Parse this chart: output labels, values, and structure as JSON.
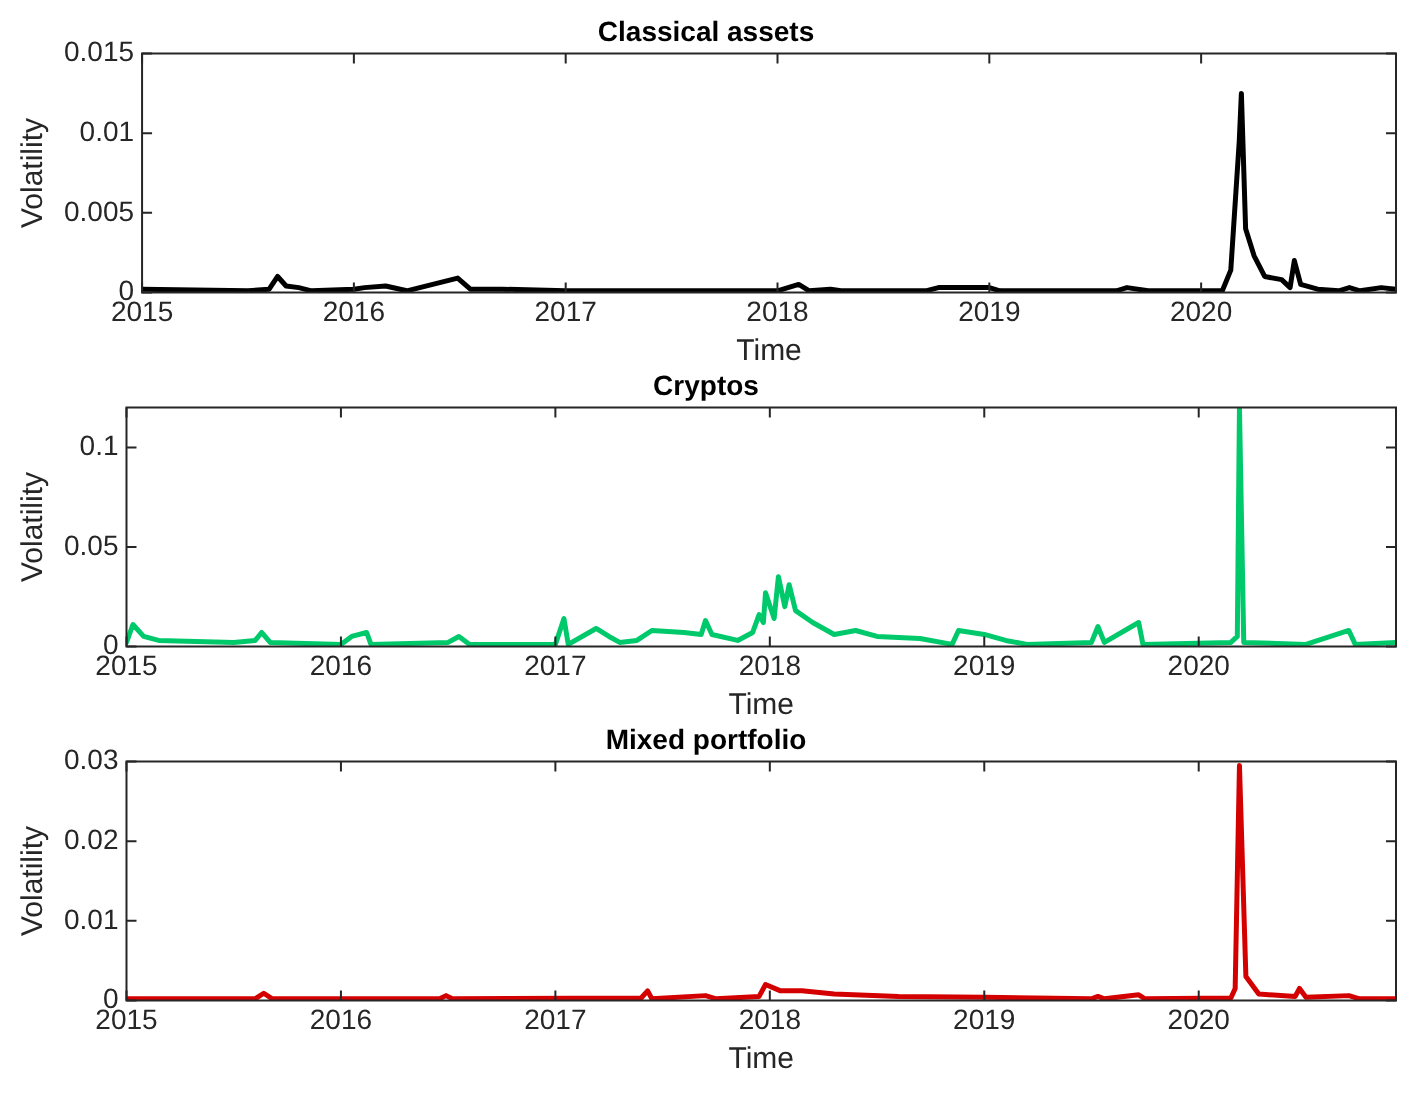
{
  "chart_data": [
    {
      "type": "line",
      "title": "Classical assets",
      "xlabel": "Time",
      "ylabel": "Volatility",
      "xlim": [
        2015,
        2020.92
      ],
      "xticks": [
        2015,
        2016,
        2017,
        2018,
        2019,
        2020
      ],
      "ylim": [
        0,
        0.015
      ],
      "yticks": [
        0,
        0.005,
        0.01,
        0.015
      ],
      "grid": false,
      "legend": false,
      "line_style": "solid",
      "marker": "none",
      "x": [
        2015.0,
        2015.5,
        2015.6,
        2015.64,
        2015.68,
        2015.74,
        2015.8,
        2016.0,
        2016.05,
        2016.15,
        2016.25,
        2016.49,
        2016.55,
        2016.7,
        2017.0,
        2018.0,
        2018.1,
        2018.15,
        2018.25,
        2018.3,
        2018.7,
        2018.76,
        2019.0,
        2019.05,
        2019.6,
        2019.65,
        2019.75,
        2020.1,
        2020.14,
        2020.18,
        2020.19,
        2020.21,
        2020.25,
        2020.3,
        2020.38,
        2020.42,
        2020.44,
        2020.47,
        2020.55,
        2020.65,
        2020.7,
        2020.75,
        2020.85,
        2020.92
      ],
      "series": [
        {
          "color": "#000000",
          "values": [
            0.0002,
            0.0001,
            0.0002,
            0.001,
            0.0004,
            0.0003,
            0.0001,
            0.0002,
            0.0003,
            0.0004,
            0.0001,
            0.0009,
            0.0002,
            0.0002,
            0.0001,
            0.0001,
            0.0005,
            0.0001,
            0.0002,
            0.0001,
            0.0001,
            0.0003,
            0.0003,
            0.0001,
            0.0001,
            0.0003,
            0.0001,
            0.0001,
            0.0014,
            0.0095,
            0.0125,
            0.004,
            0.0023,
            0.001,
            0.0008,
            0.0003,
            0.002,
            0.0005,
            0.0002,
            0.0001,
            0.0003,
            0.0001,
            0.0003,
            0.0002
          ]
        }
      ]
    },
    {
      "type": "line",
      "title": "Cryptos",
      "xlabel": "Time",
      "ylabel": "Volatility",
      "xlim": [
        2015,
        2020.92
      ],
      "xticks": [
        2015,
        2016,
        2017,
        2018,
        2019,
        2020
      ],
      "ylim": [
        0,
        0.12
      ],
      "yticks": [
        0,
        0.05,
        0.1
      ],
      "grid": false,
      "legend": false,
      "line_style": "solid",
      "marker": "none",
      "x": [
        2015.0,
        2015.03,
        2015.08,
        2015.15,
        2015.5,
        2015.6,
        2015.63,
        2015.67,
        2016.0,
        2016.05,
        2016.12,
        2016.14,
        2016.5,
        2016.55,
        2016.6,
        2017.0,
        2017.04,
        2017.06,
        2017.19,
        2017.25,
        2017.3,
        2017.38,
        2017.45,
        2017.6,
        2017.68,
        2017.7,
        2017.73,
        2017.85,
        2017.92,
        2017.95,
        2017.97,
        2017.98,
        2018.02,
        2018.04,
        2018.07,
        2018.09,
        2018.12,
        2018.2,
        2018.3,
        2018.4,
        2018.5,
        2018.7,
        2018.85,
        2018.88,
        2019.0,
        2019.1,
        2019.2,
        2019.5,
        2019.53,
        2019.56,
        2019.72,
        2019.74,
        2020.15,
        2020.18,
        2020.19,
        2020.21,
        2020.5,
        2020.7,
        2020.73,
        2020.92
      ],
      "series": [
        {
          "color": "#00c96b",
          "values": [
            0.002,
            0.011,
            0.005,
            0.003,
            0.002,
            0.003,
            0.007,
            0.002,
            0.001,
            0.005,
            0.007,
            0.001,
            0.002,
            0.005,
            0.001,
            0.001,
            0.014,
            0.001,
            0.009,
            0.005,
            0.002,
            0.003,
            0.008,
            0.007,
            0.006,
            0.013,
            0.006,
            0.003,
            0.007,
            0.016,
            0.012,
            0.027,
            0.014,
            0.035,
            0.02,
            0.031,
            0.018,
            0.012,
            0.006,
            0.008,
            0.005,
            0.004,
            0.001,
            0.008,
            0.006,
            0.003,
            0.001,
            0.002,
            0.01,
            0.002,
            0.012,
            0.001,
            0.002,
            0.005,
            0.12,
            0.002,
            0.001,
            0.008,
            0.001,
            0.002
          ]
        }
      ]
    },
    {
      "type": "line",
      "title": "Mixed portfolio",
      "xlabel": "Time",
      "ylabel": "Volatility",
      "xlim": [
        2015,
        2020.92
      ],
      "xticks": [
        2015,
        2016,
        2017,
        2018,
        2019,
        2020
      ],
      "ylim": [
        0,
        0.03
      ],
      "yticks": [
        0,
        0.01,
        0.02,
        0.03
      ],
      "grid": false,
      "legend": false,
      "line_style": "solid",
      "marker": "none",
      "x": [
        2015.0,
        2015.6,
        2015.64,
        2015.68,
        2016.46,
        2016.49,
        2016.52,
        2017.4,
        2017.43,
        2017.45,
        2017.7,
        2017.75,
        2017.95,
        2017.98,
        2018.05,
        2018.15,
        2018.3,
        2018.6,
        2019.0,
        2019.5,
        2019.53,
        2019.56,
        2019.72,
        2019.75,
        2020.15,
        2020.17,
        2020.19,
        2020.22,
        2020.28,
        2020.45,
        2020.47,
        2020.5,
        2020.7,
        2020.75,
        2020.92
      ],
      "series": [
        {
          "color": "#d40000",
          "values": [
            0.0002,
            0.0002,
            0.0009,
            0.0002,
            0.0002,
            0.0006,
            0.0002,
            0.0003,
            0.0012,
            0.0002,
            0.0006,
            0.0002,
            0.0005,
            0.002,
            0.0012,
            0.0012,
            0.0008,
            0.0005,
            0.0004,
            0.0002,
            0.0005,
            0.0002,
            0.0007,
            0.0002,
            0.0003,
            0.0015,
            0.0295,
            0.003,
            0.0008,
            0.0005,
            0.0015,
            0.0004,
            0.0006,
            0.0002,
            0.0002
          ]
        }
      ]
    }
  ]
}
